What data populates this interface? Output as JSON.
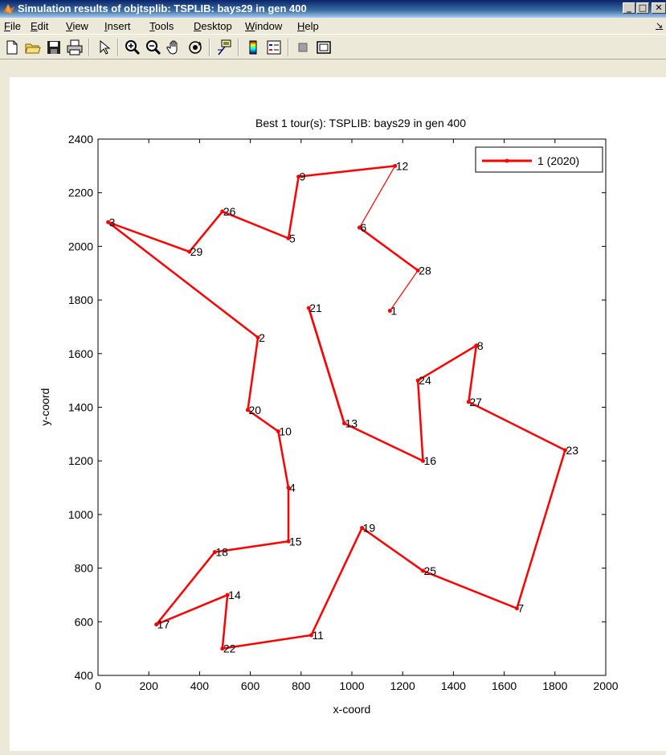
{
  "window": {
    "title": "Simulation results of objtsplib:  TSPLIB: bays29  in gen 400",
    "minimize_label": "_",
    "maximize_label": "□",
    "close_label": "✕"
  },
  "menu": [
    "File",
    "Edit",
    "View",
    "Insert",
    "Tools",
    "Desktop",
    "Window",
    "Help"
  ],
  "menu_overflow_label": "↘",
  "toolbar": [
    "new-file-icon",
    "open-folder-icon",
    "save-icon",
    "print-icon",
    "edit-arrow-icon",
    "zoom-in-icon",
    "zoom-out-icon",
    "pan-hand-icon",
    "rotate-3d-icon",
    "data-cursor-icon",
    "colorbar-icon",
    "legend-icon",
    "hide-plot-tools-icon",
    "show-plot-tools-icon"
  ],
  "colors": {
    "tour": "#ff0000",
    "window_title": "#0a246a",
    "figure_bg": "#ffffff",
    "chrome": "#ece9d8"
  },
  "chart_data": {
    "type": "line",
    "title": "Best 1 tour(s):  TSPLIB: bays29  in gen 400",
    "xlabel": "x-coord",
    "ylabel": "y-coord",
    "xlim": [
      0,
      2000
    ],
    "ylim": [
      400,
      2400
    ],
    "xticks": [
      0,
      200,
      400,
      600,
      800,
      1000,
      1200,
      1400,
      1600,
      1800,
      2000
    ],
    "yticks": [
      400,
      600,
      800,
      1000,
      1200,
      1400,
      1600,
      1800,
      2000,
      2200,
      2400
    ],
    "legend": {
      "label": "1  (2020)",
      "position": "top-right"
    },
    "grid": false,
    "cities": [
      {
        "id": 1,
        "x": 1150,
        "y": 1760
      },
      {
        "id": 2,
        "x": 630,
        "y": 1660
      },
      {
        "id": 3,
        "x": 40,
        "y": 2090
      },
      {
        "id": 4,
        "x": 750,
        "y": 1100
      },
      {
        "id": 5,
        "x": 750,
        "y": 2030
      },
      {
        "id": 6,
        "x": 1030,
        "y": 2070
      },
      {
        "id": 7,
        "x": 1650,
        "y": 650
      },
      {
        "id": 8,
        "x": 1490,
        "y": 1630
      },
      {
        "id": 9,
        "x": 790,
        "y": 2260
      },
      {
        "id": 10,
        "x": 710,
        "y": 1310
      },
      {
        "id": 11,
        "x": 840,
        "y": 550
      },
      {
        "id": 12,
        "x": 1170,
        "y": 2300
      },
      {
        "id": 13,
        "x": 970,
        "y": 1340
      },
      {
        "id": 14,
        "x": 510,
        "y": 700
      },
      {
        "id": 15,
        "x": 750,
        "y": 900
      },
      {
        "id": 16,
        "x": 1280,
        "y": 1200
      },
      {
        "id": 17,
        "x": 230,
        "y": 590
      },
      {
        "id": 18,
        "x": 460,
        "y": 860
      },
      {
        "id": 19,
        "x": 1040,
        "y": 950
      },
      {
        "id": 20,
        "x": 590,
        "y": 1390
      },
      {
        "id": 21,
        "x": 830,
        "y": 1770
      },
      {
        "id": 22,
        "x": 490,
        "y": 500
      },
      {
        "id": 23,
        "x": 1840,
        "y": 1240
      },
      {
        "id": 24,
        "x": 1260,
        "y": 1500
      },
      {
        "id": 25,
        "x": 1280,
        "y": 790
      },
      {
        "id": 26,
        "x": 490,
        "y": 2130
      },
      {
        "id": 27,
        "x": 1460,
        "y": 1420
      },
      {
        "id": 28,
        "x": 1260,
        "y": 1910
      },
      {
        "id": 29,
        "x": 360,
        "y": 1980
      }
    ],
    "tour": [
      1,
      28,
      6,
      12,
      9,
      5,
      26,
      29,
      3,
      2,
      20,
      10,
      4,
      15,
      18,
      17,
      14,
      22,
      11,
      19,
      25,
      7,
      23,
      27,
      8,
      24,
      16,
      13,
      21
    ]
  }
}
